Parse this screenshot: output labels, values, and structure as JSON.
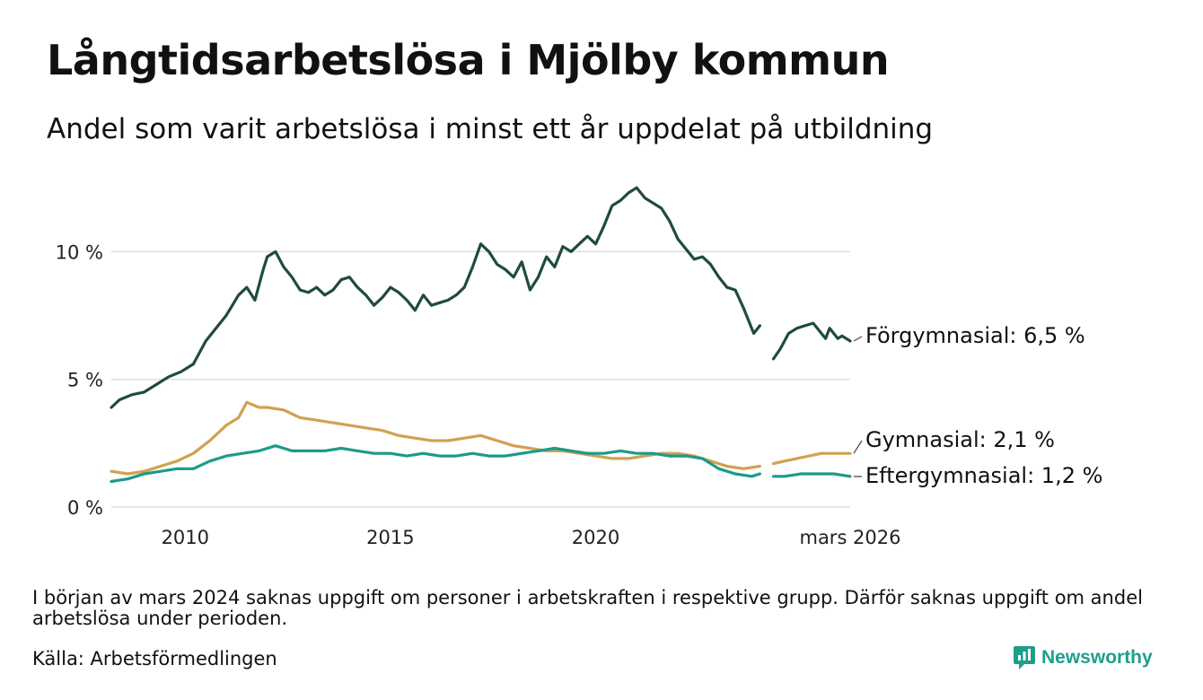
{
  "title": "Långtidsarbetslösa i Mjölby kommun",
  "subtitle": "Andel som varit arbetslösa i minst ett år uppdelat på utbildning",
  "footnote": "I början av mars 2024 saknas uppgift om personer i arbetskraften i respektive grupp. Därför saknas uppgift om andel arbetslösa under perioden.",
  "source": "Källa: Arbetsförmedlingen",
  "brand": {
    "name": "Newsworthy",
    "logo_icon": "newsworthy-logo-icon",
    "color": "#1e9e8c"
  },
  "chart_data": {
    "type": "line",
    "title": "Långtidsarbetslösa i Mjölby kommun",
    "xlabel": "",
    "ylabel": "",
    "xlim": [
      2008.2,
      2026.2
    ],
    "ylim": [
      0,
      13
    ],
    "grid": true,
    "y_ticks": [
      {
        "value": 0,
        "label": "0 %"
      },
      {
        "value": 5,
        "label": "5 %"
      },
      {
        "value": 10,
        "label": "10 %"
      }
    ],
    "x_ticks": [
      {
        "value": 2010,
        "label": "2010"
      },
      {
        "value": 2015,
        "label": "2015"
      },
      {
        "value": 2020,
        "label": "2020"
      },
      {
        "value": 2026.2,
        "label": "mars 2026"
      }
    ],
    "gap": [
      2024.0,
      2024.33
    ],
    "series": [
      {
        "name": "Förgymnasial",
        "color": "#1f4a40",
        "end_label": "Förgymnasial: 6,5 %",
        "label_value": 6.5,
        "points": [
          [
            2008.2,
            3.9
          ],
          [
            2008.4,
            4.2
          ],
          [
            2008.7,
            4.4
          ],
          [
            2009.0,
            4.5
          ],
          [
            2009.3,
            4.8
          ],
          [
            2009.6,
            5.1
          ],
          [
            2009.9,
            5.3
          ],
          [
            2010.2,
            5.6
          ],
          [
            2010.5,
            6.5
          ],
          [
            2010.8,
            7.1
          ],
          [
            2011.0,
            7.5
          ],
          [
            2011.3,
            8.3
          ],
          [
            2011.5,
            8.6
          ],
          [
            2011.7,
            8.1
          ],
          [
            2011.9,
            9.3
          ],
          [
            2012.0,
            9.8
          ],
          [
            2012.2,
            10.0
          ],
          [
            2012.4,
            9.4
          ],
          [
            2012.6,
            9.0
          ],
          [
            2012.8,
            8.5
          ],
          [
            2013.0,
            8.4
          ],
          [
            2013.2,
            8.6
          ],
          [
            2013.4,
            8.3
          ],
          [
            2013.6,
            8.5
          ],
          [
            2013.8,
            8.9
          ],
          [
            2014.0,
            9.0
          ],
          [
            2014.2,
            8.6
          ],
          [
            2014.4,
            8.3
          ],
          [
            2014.6,
            7.9
          ],
          [
            2014.8,
            8.2
          ],
          [
            2015.0,
            8.6
          ],
          [
            2015.2,
            8.4
          ],
          [
            2015.4,
            8.1
          ],
          [
            2015.6,
            7.7
          ],
          [
            2015.8,
            8.3
          ],
          [
            2016.0,
            7.9
          ],
          [
            2016.2,
            8.0
          ],
          [
            2016.4,
            8.1
          ],
          [
            2016.6,
            8.3
          ],
          [
            2016.8,
            8.6
          ],
          [
            2017.0,
            9.4
          ],
          [
            2017.2,
            10.3
          ],
          [
            2017.4,
            10.0
          ],
          [
            2017.6,
            9.5
          ],
          [
            2017.8,
            9.3
          ],
          [
            2018.0,
            9.0
          ],
          [
            2018.2,
            9.6
          ],
          [
            2018.4,
            8.5
          ],
          [
            2018.6,
            9.0
          ],
          [
            2018.8,
            9.8
          ],
          [
            2019.0,
            9.4
          ],
          [
            2019.2,
            10.2
          ],
          [
            2019.4,
            10.0
          ],
          [
            2019.6,
            10.3
          ],
          [
            2019.8,
            10.6
          ],
          [
            2020.0,
            10.3
          ],
          [
            2020.2,
            11.0
          ],
          [
            2020.4,
            11.8
          ],
          [
            2020.6,
            12.0
          ],
          [
            2020.8,
            12.3
          ],
          [
            2021.0,
            12.5
          ],
          [
            2021.2,
            12.1
          ],
          [
            2021.4,
            11.9
          ],
          [
            2021.6,
            11.7
          ],
          [
            2021.8,
            11.2
          ],
          [
            2022.0,
            10.5
          ],
          [
            2022.2,
            10.1
          ],
          [
            2022.4,
            9.7
          ],
          [
            2022.6,
            9.8
          ],
          [
            2022.8,
            9.5
          ],
          [
            2023.0,
            9.0
          ],
          [
            2023.2,
            8.6
          ],
          [
            2023.4,
            8.5
          ],
          [
            2023.6,
            7.8
          ],
          [
            2023.8,
            7.0
          ],
          [
            2023.85,
            6.8
          ],
          [
            2024.0,
            7.1
          ],
          [
            2024.33,
            5.8
          ],
          [
            2024.5,
            6.2
          ],
          [
            2024.7,
            6.8
          ],
          [
            2024.9,
            7.0
          ],
          [
            2025.1,
            7.1
          ],
          [
            2025.3,
            7.2
          ],
          [
            2025.5,
            6.8
          ],
          [
            2025.6,
            6.6
          ],
          [
            2025.7,
            7.0
          ],
          [
            2025.9,
            6.6
          ],
          [
            2026.0,
            6.7
          ],
          [
            2026.2,
            6.5
          ]
        ]
      },
      {
        "name": "Gymnasial",
        "color": "#d1a150",
        "end_label": "Gymnasial: 2,1 %",
        "label_value": 2.1,
        "points": [
          [
            2008.2,
            1.4
          ],
          [
            2008.6,
            1.3
          ],
          [
            2009.0,
            1.4
          ],
          [
            2009.4,
            1.6
          ],
          [
            2009.8,
            1.8
          ],
          [
            2010.2,
            2.1
          ],
          [
            2010.6,
            2.6
          ],
          [
            2011.0,
            3.2
          ],
          [
            2011.3,
            3.5
          ],
          [
            2011.5,
            4.1
          ],
          [
            2011.8,
            3.9
          ],
          [
            2012.0,
            3.9
          ],
          [
            2012.4,
            3.8
          ],
          [
            2012.8,
            3.5
          ],
          [
            2013.2,
            3.4
          ],
          [
            2013.6,
            3.3
          ],
          [
            2014.0,
            3.2
          ],
          [
            2014.4,
            3.1
          ],
          [
            2014.8,
            3.0
          ],
          [
            2015.2,
            2.8
          ],
          [
            2015.6,
            2.7
          ],
          [
            2016.0,
            2.6
          ],
          [
            2016.4,
            2.6
          ],
          [
            2016.8,
            2.7
          ],
          [
            2017.2,
            2.8
          ],
          [
            2017.6,
            2.6
          ],
          [
            2018.0,
            2.4
          ],
          [
            2018.4,
            2.3
          ],
          [
            2018.8,
            2.2
          ],
          [
            2019.2,
            2.2
          ],
          [
            2019.6,
            2.1
          ],
          [
            2020.0,
            2.0
          ],
          [
            2020.4,
            1.9
          ],
          [
            2020.8,
            1.9
          ],
          [
            2021.2,
            2.0
          ],
          [
            2021.6,
            2.1
          ],
          [
            2022.0,
            2.1
          ],
          [
            2022.4,
            2.0
          ],
          [
            2022.8,
            1.8
          ],
          [
            2023.2,
            1.6
          ],
          [
            2023.6,
            1.5
          ],
          [
            2024.0,
            1.6
          ],
          [
            2024.33,
            1.7
          ],
          [
            2024.6,
            1.8
          ],
          [
            2024.9,
            1.9
          ],
          [
            2025.2,
            2.0
          ],
          [
            2025.5,
            2.1
          ],
          [
            2025.8,
            2.1
          ],
          [
            2026.2,
            2.1
          ]
        ]
      },
      {
        "name": "Eftergymnasial",
        "color": "#1c9a88",
        "end_label": "Eftergymnasial: 1,2 %",
        "label_value": 1.2,
        "points": [
          [
            2008.2,
            1.0
          ],
          [
            2008.6,
            1.1
          ],
          [
            2009.0,
            1.3
          ],
          [
            2009.4,
            1.4
          ],
          [
            2009.8,
            1.5
          ],
          [
            2010.2,
            1.5
          ],
          [
            2010.6,
            1.8
          ],
          [
            2011.0,
            2.0
          ],
          [
            2011.4,
            2.1
          ],
          [
            2011.8,
            2.2
          ],
          [
            2012.2,
            2.4
          ],
          [
            2012.6,
            2.2
          ],
          [
            2013.0,
            2.2
          ],
          [
            2013.4,
            2.2
          ],
          [
            2013.8,
            2.3
          ],
          [
            2014.2,
            2.2
          ],
          [
            2014.6,
            2.1
          ],
          [
            2015.0,
            2.1
          ],
          [
            2015.4,
            2.0
          ],
          [
            2015.8,
            2.1
          ],
          [
            2016.2,
            2.0
          ],
          [
            2016.6,
            2.0
          ],
          [
            2017.0,
            2.1
          ],
          [
            2017.4,
            2.0
          ],
          [
            2017.8,
            2.0
          ],
          [
            2018.2,
            2.1
          ],
          [
            2018.6,
            2.2
          ],
          [
            2019.0,
            2.3
          ],
          [
            2019.4,
            2.2
          ],
          [
            2019.8,
            2.1
          ],
          [
            2020.2,
            2.1
          ],
          [
            2020.6,
            2.2
          ],
          [
            2021.0,
            2.1
          ],
          [
            2021.4,
            2.1
          ],
          [
            2021.8,
            2.0
          ],
          [
            2022.2,
            2.0
          ],
          [
            2022.6,
            1.9
          ],
          [
            2023.0,
            1.5
          ],
          [
            2023.4,
            1.3
          ],
          [
            2023.8,
            1.2
          ],
          [
            2024.0,
            1.3
          ],
          [
            2024.33,
            1.2
          ],
          [
            2024.6,
            1.2
          ],
          [
            2025.0,
            1.3
          ],
          [
            2025.4,
            1.3
          ],
          [
            2025.8,
            1.3
          ],
          [
            2026.2,
            1.2
          ]
        ]
      }
    ]
  }
}
